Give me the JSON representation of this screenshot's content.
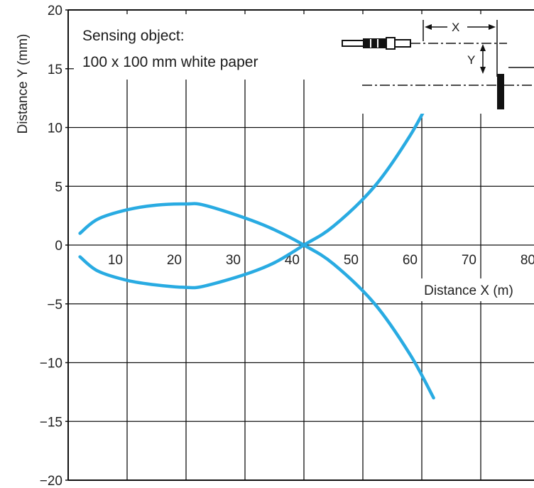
{
  "chart_data": {
    "type": "line",
    "xlabel": "Distance X (m)",
    "ylabel": "Distance Y (mm)",
    "xlim": [
      0,
      80
    ],
    "ylim": [
      -20,
      20
    ],
    "x_ticks": [
      10,
      20,
      30,
      40,
      50,
      60,
      70,
      80
    ],
    "y_ticks": [
      20,
      15,
      10,
      5,
      0,
      -5,
      -10,
      -15,
      -20
    ],
    "y_tick_labels": [
      "20",
      "15",
      "10",
      "5",
      "0",
      "−5",
      "−10",
      "−15",
      "−20"
    ],
    "grid": true,
    "annotation": {
      "line1": "Sensing object:",
      "line2": "100 x 100 mm white paper"
    },
    "inset_labels": {
      "x": "X",
      "y": "Y"
    },
    "series_color": "#29abe2",
    "series": [
      {
        "x": [
          2,
          5,
          10,
          15,
          20,
          23,
          30,
          35,
          40,
          45,
          52,
          58,
          62
        ],
        "y": [
          1,
          2.2,
          3,
          3.4,
          3.5,
          3.4,
          2.3,
          1.3,
          0,
          -1.6,
          -5,
          -9.3,
          -13
        ]
      },
      {
        "x": [
          2,
          5,
          10,
          15,
          20,
          23,
          30,
          35,
          40,
          45,
          52,
          58,
          62
        ],
        "y": [
          -1,
          -2.2,
          -3,
          -3.4,
          -3.6,
          -3.5,
          -2.5,
          -1.5,
          0,
          1.6,
          5,
          9.3,
          13
        ]
      }
    ]
  }
}
